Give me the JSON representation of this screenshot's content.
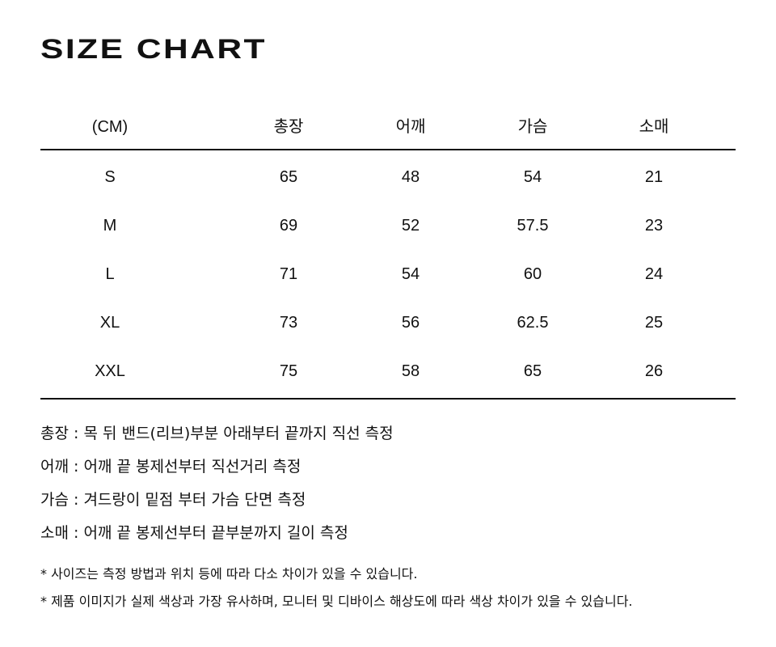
{
  "header": {
    "title": "SIZE CHART"
  },
  "table": {
    "columns": [
      "(CM)",
      "총장",
      "어깨",
      "가슴",
      "소매"
    ],
    "rows": [
      [
        "S",
        "65",
        "48",
        "54",
        "21"
      ],
      [
        "M",
        "69",
        "52",
        "57.5",
        "23"
      ],
      [
        "L",
        "71",
        "54",
        "60",
        "24"
      ],
      [
        "XL",
        "73",
        "56",
        "62.5",
        "25"
      ],
      [
        "XXL",
        "75",
        "58",
        "65",
        "26"
      ]
    ]
  },
  "notes": [
    "총장 : 목 뒤 밴드(리브)부분 아래부터 끝까지 직선 측정",
    "어깨 : 어깨 끝 봉제선부터 직선거리 측정",
    "가슴 : 겨드랑이 밑점 부터 가슴 단면 측정",
    "소매 : 어깨 끝 봉제선부터 끝부분까지 길이 측정"
  ],
  "disclaimers": [
    "* 사이즈는 측정 방법과 위치 등에 따라 다소 차이가 있을 수 있습니다.",
    "* 제품 이미지가 실제 색상과 가장 유사하며, 모니터 및 디바이스 해상도에 따라 색상 차이가 있을 수 있습니다."
  ]
}
